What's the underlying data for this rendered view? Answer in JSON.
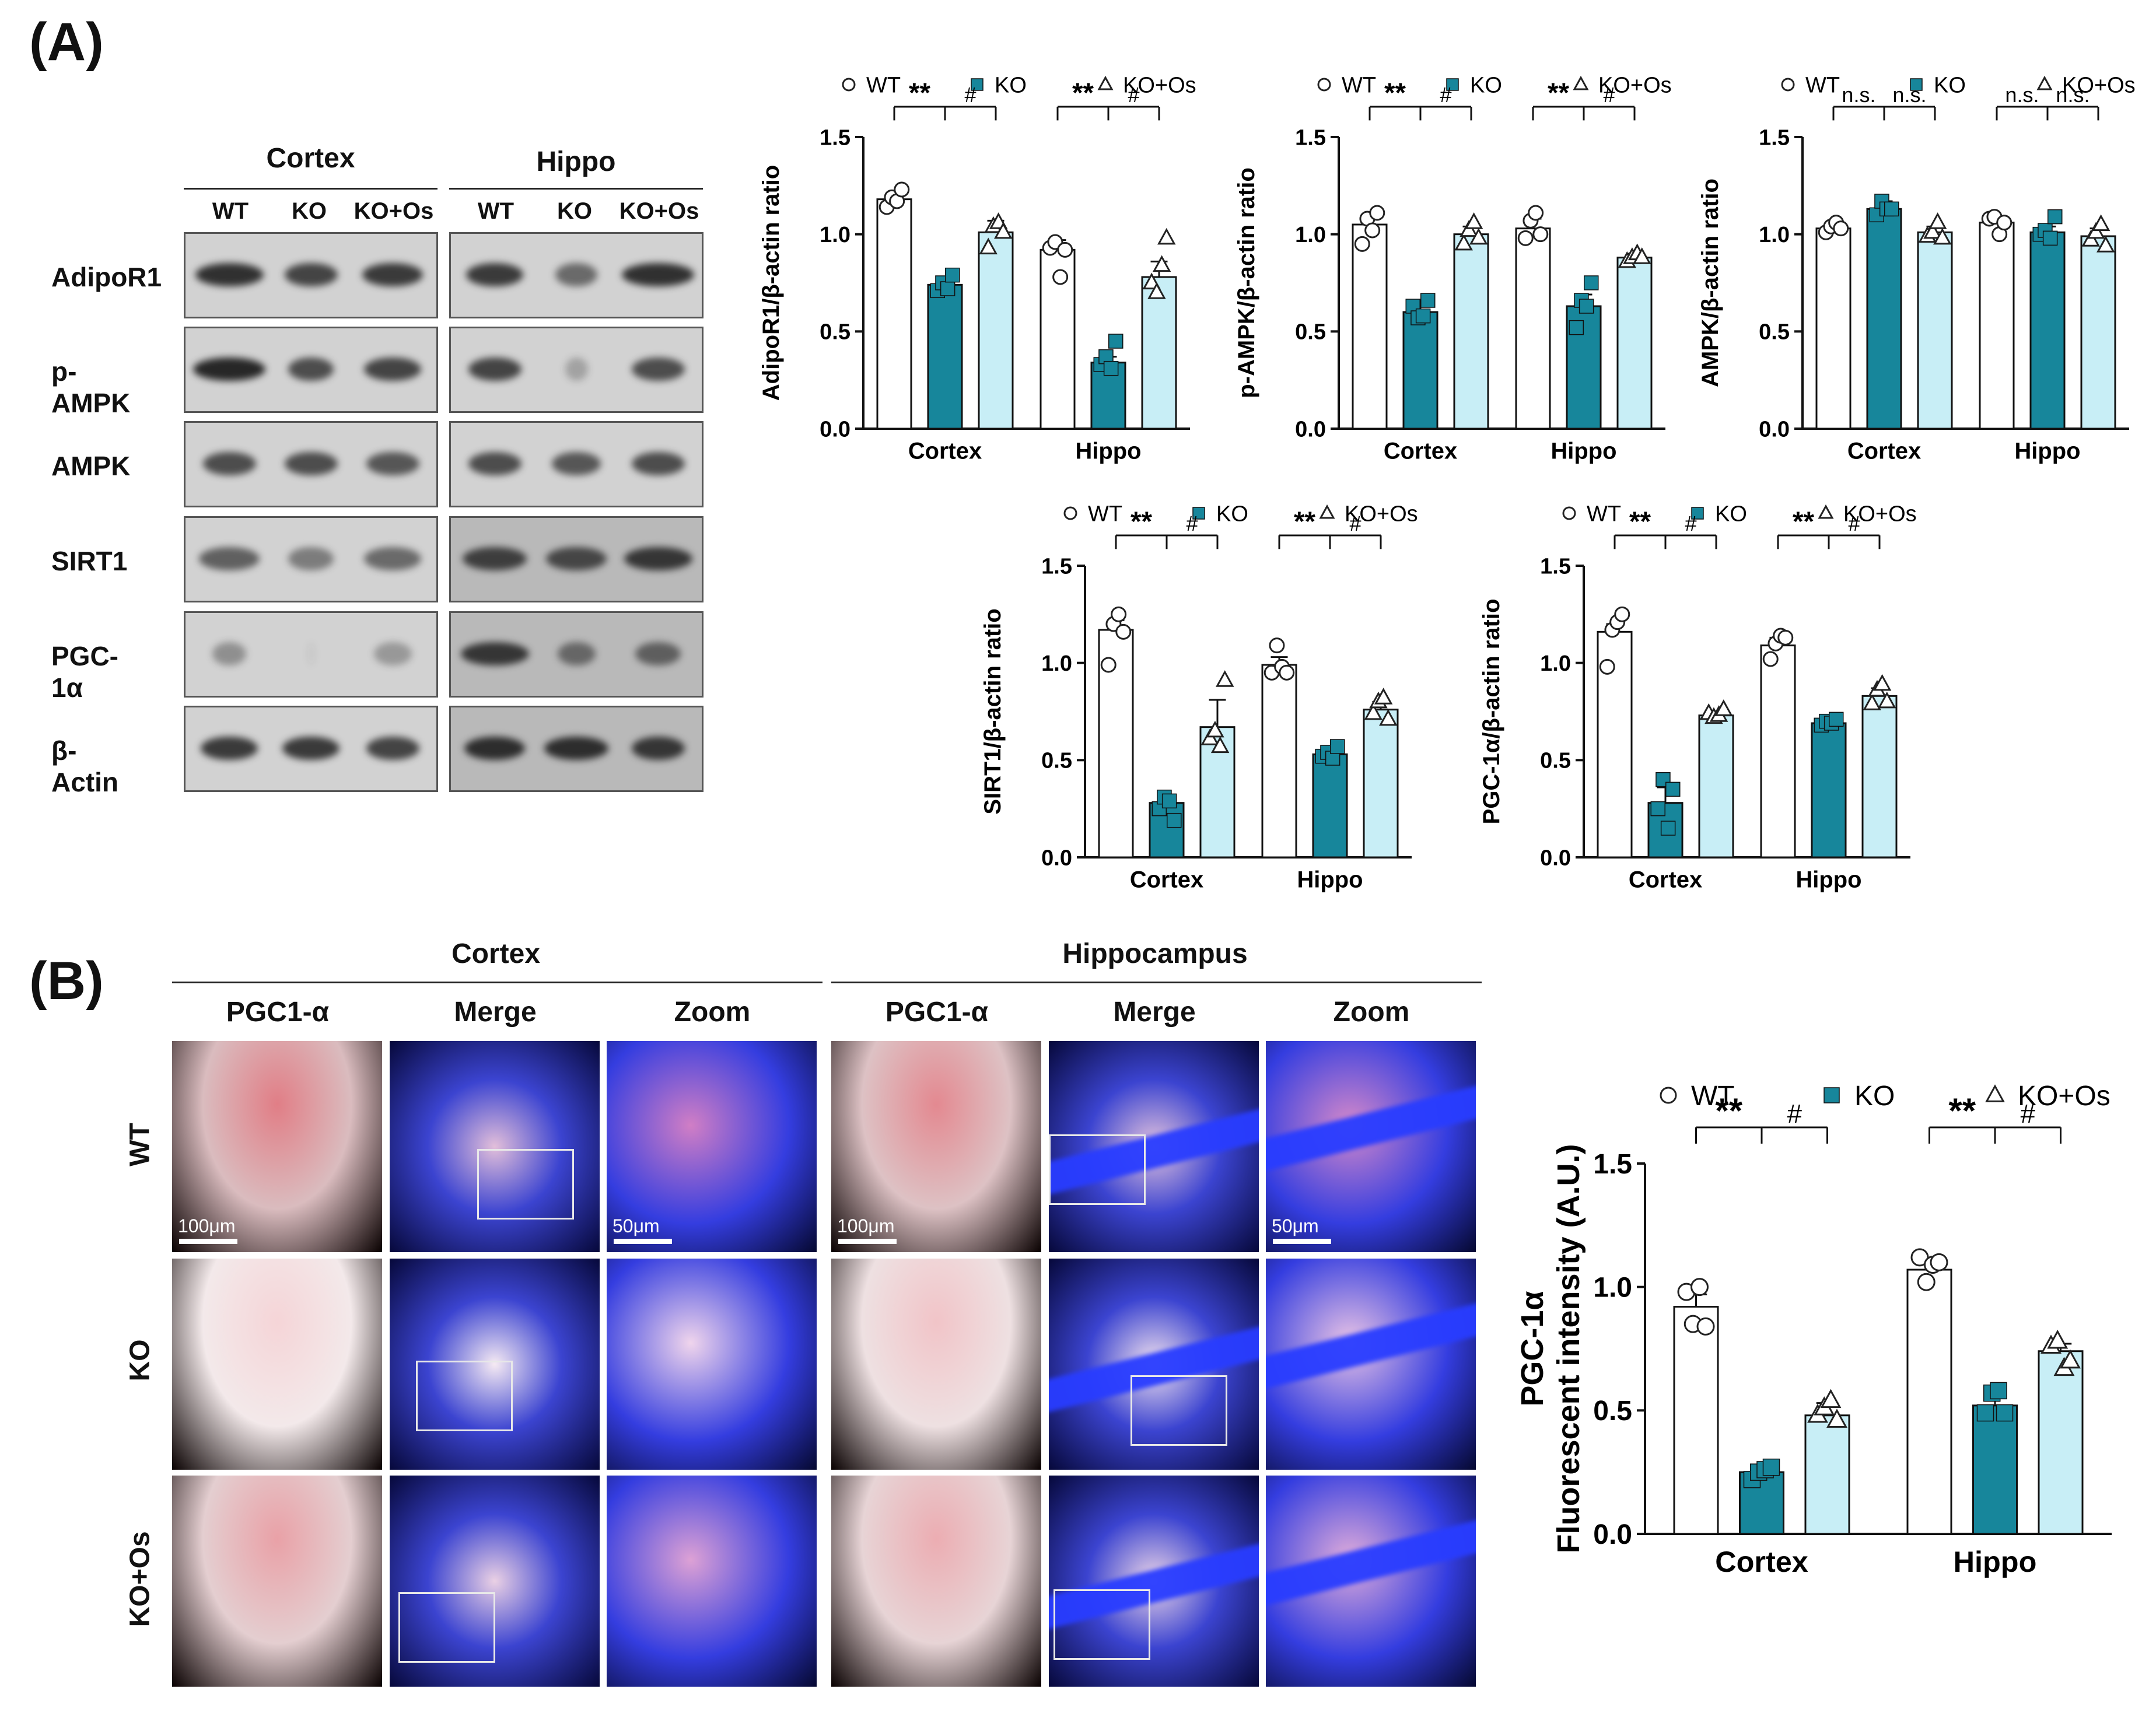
{
  "panels": {
    "a_label": "(A)",
    "b_label": "(B)"
  },
  "western_blot": {
    "groups": [
      {
        "name": "Cortex",
        "lanes": [
          "WT",
          "KO",
          "KO+Os"
        ]
      },
      {
        "name": "Hippo",
        "lanes": [
          "WT",
          "KO",
          "KO+Os"
        ]
      }
    ],
    "proteins": [
      "AdipoR1",
      "p-AMPK",
      "AMPK",
      "SIRT1",
      "PGC-1α",
      "β-Actin"
    ]
  },
  "legend_labels": [
    "WT",
    "KO",
    "KO+Os"
  ],
  "colors": {
    "wt": "#ffffff",
    "ko": "#17869b",
    "kos": "#c8eef6",
    "stroke": "#111111",
    "red_signal": "#e0122a",
    "blue_signal": "#1f2fe0"
  },
  "chart_data": [
    {
      "id": "adipor1",
      "type": "bar",
      "ylabel": "AdipoR1/β-actin ratio",
      "ylim": [
        0,
        1.5
      ],
      "yticks": [
        "0.0",
        "0.5",
        "1.0",
        "1.5"
      ],
      "categories": [
        "Cortex",
        "Hippo"
      ],
      "series": [
        {
          "name": "WT",
          "values": [
            1.18,
            0.92
          ],
          "err": [
            0.03,
            0.05
          ],
          "points": [
            [
              1.14,
              1.19,
              1.17,
              1.23
            ],
            [
              0.93,
              0.96,
              0.78,
              0.92
            ]
          ]
        },
        {
          "name": "KO",
          "values": [
            0.74,
            0.34
          ],
          "err": [
            0.03,
            0.03
          ],
          "points": [
            [
              0.71,
              0.75,
              0.72,
              0.79
            ],
            [
              0.33,
              0.37,
              0.31,
              0.45
            ]
          ]
        },
        {
          "name": "KO+Os",
          "values": [
            1.01,
            0.78
          ],
          "err": [
            0.06,
            0.08
          ],
          "points": [
            [
              0.93,
              1.04,
              1.06,
              1.01
            ],
            [
              0.75,
              0.7,
              0.84,
              0.98
            ]
          ]
        }
      ],
      "annotations": [
        [
          "**",
          "#"
        ],
        [
          "**",
          "#"
        ]
      ]
    },
    {
      "id": "pampk",
      "type": "bar",
      "ylabel": "p-AMPK/β-actin ratio",
      "ylim": [
        0,
        1.5
      ],
      "yticks": [
        "0.0",
        "0.5",
        "1.0",
        "1.5"
      ],
      "categories": [
        "Cortex",
        "Hippo"
      ],
      "series": [
        {
          "name": "WT",
          "values": [
            1.05,
            1.03
          ],
          "err": [
            0.05,
            0.05
          ],
          "points": [
            [
              0.95,
              1.08,
              1.02,
              1.11
            ],
            [
              0.98,
              1.07,
              1.11,
              1.0
            ]
          ]
        },
        {
          "name": "KO",
          "values": [
            0.6,
            0.63
          ],
          "err": [
            0.03,
            0.06
          ],
          "points": [
            [
              0.63,
              0.57,
              0.58,
              0.66
            ],
            [
              0.52,
              0.66,
              0.63,
              0.75
            ]
          ]
        },
        {
          "name": "KO+Os",
          "values": [
            1.0,
            0.88
          ],
          "err": [
            0.04,
            0.02
          ],
          "points": [
            [
              0.95,
              1.02,
              1.06,
              0.98
            ],
            [
              0.86,
              0.88,
              0.9,
              0.88
            ]
          ]
        }
      ],
      "annotations": [
        [
          "**",
          "#"
        ],
        [
          "**",
          "#"
        ]
      ]
    },
    {
      "id": "ampk",
      "type": "bar",
      "ylabel": "AMPK/β-actin ratio",
      "ylim": [
        0,
        1.5
      ],
      "yticks": [
        "0.0",
        "0.5",
        "1.0",
        "1.5"
      ],
      "categories": [
        "Cortex",
        "Hippo"
      ],
      "series": [
        {
          "name": "WT",
          "values": [
            1.03,
            1.06
          ],
          "err": [
            0.02,
            0.03
          ],
          "points": [
            [
              1.01,
              1.04,
              1.06,
              1.03
            ],
            [
              1.08,
              1.09,
              1.0,
              1.06
            ]
          ]
        },
        {
          "name": "KO",
          "values": [
            1.13,
            1.01
          ],
          "err": [
            0.04,
            0.03
          ],
          "points": [
            [
              1.1,
              1.17,
              1.13,
              1.13
            ],
            [
              1.0,
              1.02,
              0.98,
              1.09
            ]
          ]
        },
        {
          "name": "KO+Os",
          "values": [
            1.01,
            0.99
          ],
          "err": [
            0.03,
            0.04
          ],
          "points": [
            [
              0.99,
              1.01,
              1.06,
              0.98
            ],
            [
              0.97,
              1.01,
              1.05,
              0.94
            ]
          ]
        }
      ],
      "annotations": [
        [
          "n.s.",
          "n.s."
        ],
        [
          "n.s.",
          "n.s."
        ]
      ]
    },
    {
      "id": "sirt1",
      "type": "bar",
      "ylabel": "SIRT1/β-actin ratio",
      "ylim": [
        0,
        1.5
      ],
      "yticks": [
        "0.0",
        "0.5",
        "1.0",
        "1.5"
      ],
      "categories": [
        "Cortex",
        "Hippo"
      ],
      "series": [
        {
          "name": "WT",
          "values": [
            1.17,
            0.99
          ],
          "err": [
            0.05,
            0.04
          ],
          "points": [
            [
              0.99,
              1.2,
              1.25,
              1.16
            ],
            [
              0.95,
              1.09,
              0.98,
              0.95
            ]
          ]
        },
        {
          "name": "KO",
          "values": [
            0.28,
            0.53
          ],
          "err": [
            0.03,
            0.02
          ],
          "points": [
            [
              0.25,
              0.31,
              0.29,
              0.19
            ],
            [
              0.52,
              0.54,
              0.51,
              0.57
            ]
          ]
        },
        {
          "name": "KO+Os",
          "values": [
            0.67,
            0.76
          ],
          "err": [
            0.14,
            0.04
          ],
          "points": [
            [
              0.61,
              0.65,
              0.57,
              0.91
            ],
            [
              0.74,
              0.8,
              0.82,
              0.71
            ]
          ]
        }
      ],
      "annotations": [
        [
          "**",
          "#"
        ],
        [
          "**",
          "#"
        ]
      ]
    },
    {
      "id": "pgc_wb",
      "type": "bar",
      "ylabel": "PGC-1α/β-actin ratio",
      "ylim": [
        0,
        1.5
      ],
      "yticks": [
        "0.0",
        "0.5",
        "1.0",
        "1.5"
      ],
      "categories": [
        "Cortex",
        "Hippo"
      ],
      "series": [
        {
          "name": "WT",
          "values": [
            1.16,
            1.09
          ],
          "err": [
            0.04,
            0.04
          ],
          "points": [
            [
              0.98,
              1.17,
              1.21,
              1.25
            ],
            [
              1.02,
              1.1,
              1.14,
              1.13
            ]
          ]
        },
        {
          "name": "KO",
          "values": [
            0.28,
            0.69
          ],
          "err": [
            0.08,
            0.02
          ],
          "points": [
            [
              0.25,
              0.4,
              0.15,
              0.35
            ],
            [
              0.68,
              0.7,
              0.69,
              0.71
            ]
          ]
        },
        {
          "name": "KO+Os",
          "values": [
            0.73,
            0.83
          ],
          "err": [
            0.02,
            0.04
          ],
          "points": [
            [
              0.74,
              0.72,
              0.73,
              0.76
            ],
            [
              0.79,
              0.86,
              0.89,
              0.8
            ]
          ]
        }
      ],
      "annotations": [
        [
          "**",
          "#"
        ],
        [
          "**",
          "#"
        ]
      ]
    },
    {
      "id": "pgc_if",
      "type": "bar",
      "ylabel": "PGC-1α",
      "ylabel2": "Fluorescent intensity (A.U.)",
      "ylim": [
        0,
        1.5
      ],
      "yticks": [
        "0.0",
        "0.5",
        "1.0",
        "1.5"
      ],
      "categories": [
        "Cortex",
        "Hippo"
      ],
      "series": [
        {
          "name": "WT",
          "values": [
            0.92,
            1.07
          ],
          "err": [
            0.05,
            0.03
          ],
          "points": [
            [
              0.98,
              0.85,
              1.0,
              0.84
            ],
            [
              1.12,
              1.02,
              1.09,
              1.1
            ]
          ]
        },
        {
          "name": "KO",
          "values": [
            0.25,
            0.52
          ],
          "err": [
            0.02,
            0.03
          ],
          "points": [
            [
              0.22,
              0.25,
              0.26,
              0.27
            ],
            [
              0.49,
              0.57,
              0.58,
              0.49
            ]
          ]
        },
        {
          "name": "KO+Os",
          "values": [
            0.48,
            0.74
          ],
          "err": [
            0.05,
            0.03
          ],
          "points": [
            [
              0.48,
              0.51,
              0.54,
              0.46
            ],
            [
              0.76,
              0.78,
              0.67,
              0.7
            ]
          ]
        }
      ],
      "annotations": [
        [
          "**",
          "#"
        ],
        [
          "**",
          "#"
        ]
      ]
    }
  ],
  "if_panel": {
    "regions": [
      "Cortex",
      "Hippocampus"
    ],
    "columns": [
      "PGC1-α",
      "Merge",
      "Zoom"
    ],
    "rows": [
      "WT",
      "KO",
      "KO+Os"
    ],
    "scale_large": "100μm",
    "scale_small": "50μm"
  }
}
